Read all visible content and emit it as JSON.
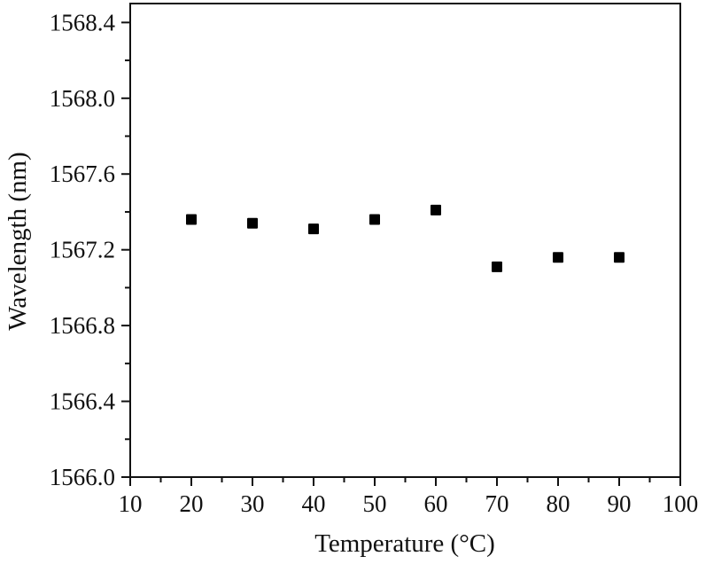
{
  "chart_data": {
    "type": "scatter",
    "title": "",
    "xlabel": "Temperature (°C)",
    "ylabel": "Wavelength (nm)",
    "xlim": [
      10,
      100
    ],
    "ylim": [
      1566.0,
      1568.5
    ],
    "x_ticks": [
      10,
      20,
      30,
      40,
      50,
      60,
      70,
      80,
      90,
      100
    ],
    "x_tick_labels": [
      "10",
      "20",
      "30",
      "40",
      "50",
      "60",
      "70",
      "80",
      "90",
      "100"
    ],
    "x_minor_step": 5,
    "y_ticks": [
      1566.0,
      1566.4,
      1566.8,
      1567.2,
      1567.6,
      1568.0,
      1568.4
    ],
    "y_tick_labels": [
      "1566.0",
      "1566.4",
      "1566.8",
      "1567.2",
      "1567.6",
      "1568.0",
      "1568.4"
    ],
    "y_minor_step": 0.2,
    "grid": false,
    "legend": null,
    "marker": "square",
    "marker_color": "#000000",
    "series": [
      {
        "name": "Wavelength",
        "x": [
          20,
          30,
          40,
          50,
          60,
          70,
          80,
          90
        ],
        "y": [
          1567.36,
          1567.34,
          1567.31,
          1567.36,
          1567.41,
          1567.11,
          1567.16,
          1567.16
        ]
      }
    ]
  }
}
